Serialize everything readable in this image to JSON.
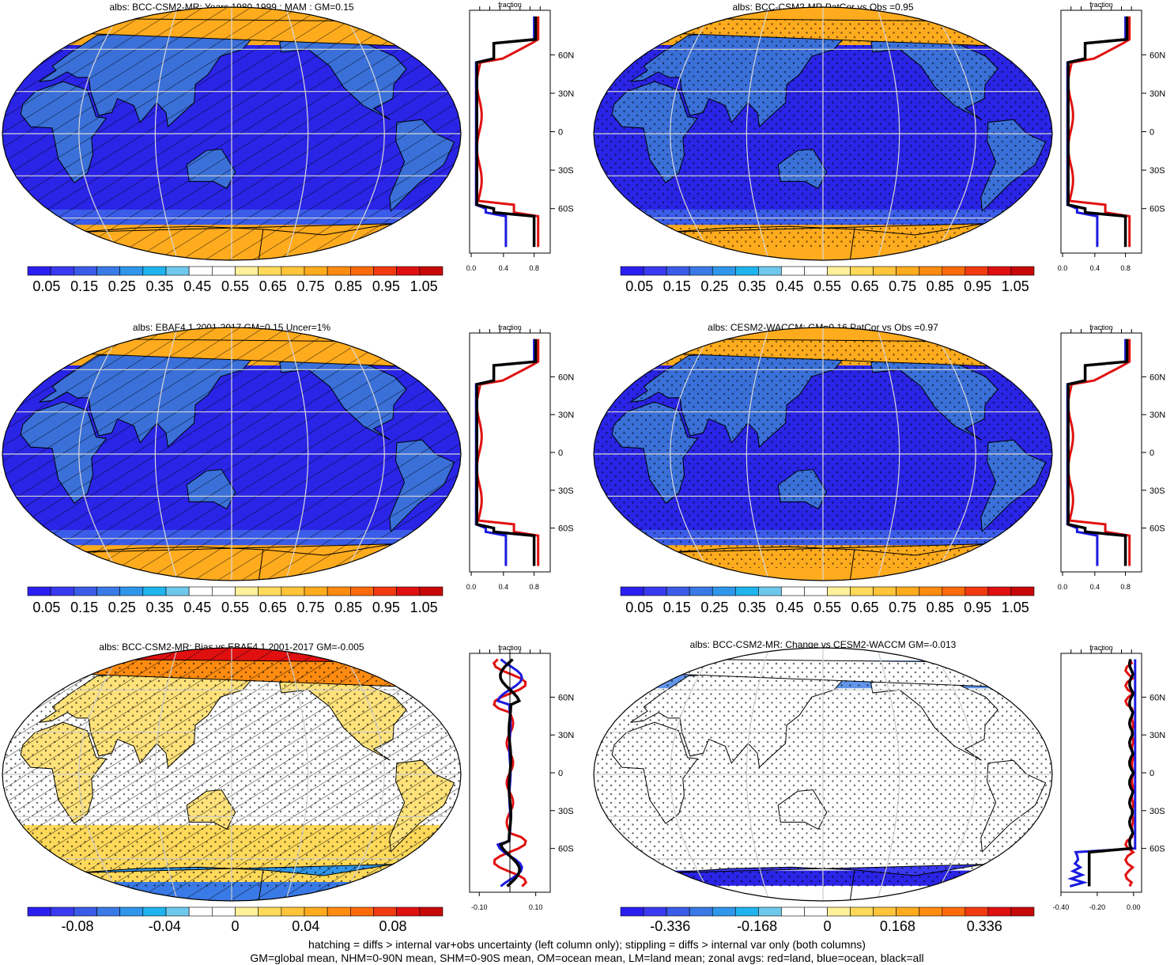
{
  "panels": [
    {
      "id": "p1",
      "title": "albs: BCC-CSM2-MR: Years 1980-1999 : MAM : GM=0.15",
      "hatch": true,
      "stipple": false,
      "kind": "abs",
      "zonal": {
        "xticks": [
          "0.0",
          "0.4",
          "0.8"
        ],
        "xlabel": "fraction"
      }
    },
    {
      "id": "p2",
      "title": "albs: BCC-CSM2-MR PatCor vs Obs =0.95",
      "hatch": false,
      "stipple": true,
      "kind": "abs",
      "zonal": {
        "xticks": [
          "0.0",
          "0.4",
          "0.8"
        ],
        "xlabel": "fraction"
      }
    },
    {
      "id": "p3",
      "title": "albs: EBAF4.1 2001-2017 GM=0.15 Uncer=1%",
      "hatch": true,
      "stipple": false,
      "kind": "abs",
      "zonal": {
        "xticks": [
          "0.0",
          "0.4",
          "0.8"
        ],
        "xlabel": "fraction"
      }
    },
    {
      "id": "p4",
      "title": "albs: CESM2-WACCM: GM=0.16 PatCor vs Obs =0.97",
      "hatch": false,
      "stipple": true,
      "kind": "abs",
      "zonal": {
        "xticks": [
          "0.0",
          "0.4",
          "0.8"
        ],
        "xlabel": "fraction"
      }
    },
    {
      "id": "p5",
      "title": "albs: BCC-CSM2-MR: Bias vs EBAF4.1 2001-2017 GM=-0.005",
      "hatch": true,
      "stipple": true,
      "kind": "bias",
      "zonal": {
        "xticks": [
          "-0.10",
          "0.10"
        ],
        "xlabel": "fraction"
      }
    },
    {
      "id": "p6",
      "title": "albs: BCC-CSM2-MR: Change vs CESM2-WACCM GM=-0.013",
      "hatch": false,
      "stipple": true,
      "kind": "change",
      "zonal": {
        "xticks": [
          "-0.40",
          "-0.20",
          "0.00"
        ],
        "xlabel": "fraction"
      }
    }
  ],
  "lat_labels": [
    "60N",
    "30N",
    "0",
    "30S",
    "60S"
  ],
  "colorbars": {
    "abs": {
      "labels": [
        "0.05",
        "0.15",
        "0.25",
        "0.35",
        "0.45",
        "0.55",
        "0.65",
        "0.75",
        "0.85",
        "0.95",
        "1.05"
      ]
    },
    "bias": {
      "labels": [
        "-0.08",
        "-0.04",
        "0",
        "0.04",
        "0.08"
      ]
    },
    "change": {
      "labels": [
        "-0.336",
        "-0.168",
        "0",
        "0.168",
        "0.336"
      ]
    }
  },
  "palette": [
    "#2a1ff0",
    "#3a3af2",
    "#3b5ce8",
    "#3a7ae6",
    "#2f96ea",
    "#20b4ee",
    "#6ec8ec",
    "#ffffff",
    "#ffffff",
    "#fff09a",
    "#ffd95a",
    "#ffc43a",
    "#ffab1e",
    "#ff8c10",
    "#ff6a0a",
    "#f23a10",
    "#e01010",
    "#c80808"
  ],
  "footer": {
    "line1": "hatching = diffs > internal var+obs uncertainty (left column only); stippling = diffs > internal var only (both columns)",
    "line2": "GM=global mean, NHM=0-90N mean, SHM=0-90S mean, OM=ocean mean, LM=land mean; zonal avgs: red=land, blue=ocean, black=all"
  }
}
